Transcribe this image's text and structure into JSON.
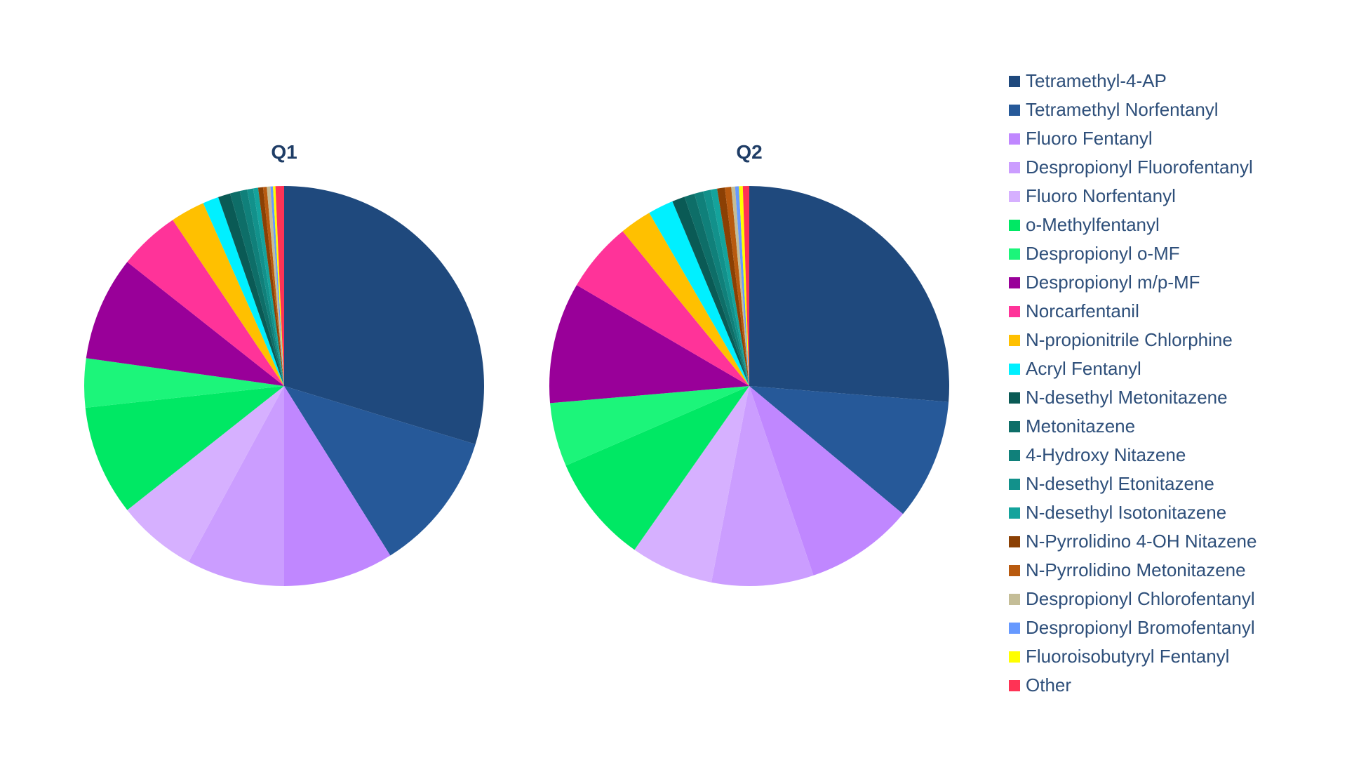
{
  "chart_data": [
    {
      "type": "pie",
      "title": "Q1",
      "categories": [
        "Tetramethyl-4-AP",
        "Tetramethyl Norfentanyl",
        "Fluoro Fentanyl",
        "Despropionyl Fluorofentanyl",
        "Fluoro Norfentanyl",
        "o-Methylfentanyl",
        "Despropionyl o-MF",
        "Despropionyl m/p-MF",
        "Norcarfentanil",
        "N-propionitrile Chlorphine",
        "Acryl Fentanyl",
        "N-desethyl Metonitazene",
        "Metonitazene",
        "4-Hydroxy Nitazene",
        "N-desethyl Etonitazene",
        "N-desethyl Isotonitazene",
        "N-Pyrrolidino 4-OH Nitazene",
        "N-Pyrrolidino Metonitazene",
        "Despropionyl Chlorofentanyl",
        "Despropionyl Bromofentanyl",
        "Fluoroisobutyryl Fentanyl",
        "Other"
      ],
      "values": [
        30.0,
        11.5,
        9.0,
        8.0,
        6.5,
        9.0,
        4.0,
        8.5,
        5.0,
        2.8,
        1.3,
        1.0,
        0.8,
        0.6,
        0.5,
        0.4,
        0.4,
        0.3,
        0.3,
        0.2,
        0.2,
        0.7
      ]
    },
    {
      "type": "pie",
      "title": "Q2",
      "categories": [
        "Tetramethyl-4-AP",
        "Tetramethyl Norfentanyl",
        "Fluoro Fentanyl",
        "Despropionyl Fluorofentanyl",
        "Fluoro Norfentanyl",
        "o-Methylfentanyl",
        "Despropionyl o-MF",
        "Despropionyl m/p-MF",
        "Norcarfentanil",
        "N-propionitrile Chlorphine",
        "Acryl Fentanyl",
        "N-desethyl Metonitazene",
        "Metonitazene",
        "4-Hydroxy Nitazene",
        "N-desethyl Etonitazene",
        "N-desethyl Isotonitazene",
        "N-Pyrrolidino 4-OH Nitazene",
        "N-Pyrrolidino Metonitazene",
        "Despropionyl Chlorofentanyl",
        "Despropionyl Bromofentanyl",
        "Fluoroisobutyryl Fentanyl",
        "Other"
      ],
      "values": [
        25.5,
        9.5,
        8.5,
        8.0,
        6.5,
        8.5,
        5.0,
        9.5,
        5.5,
        2.5,
        2.0,
        1.0,
        0.8,
        0.7,
        0.6,
        0.5,
        0.6,
        0.5,
        0.3,
        0.3,
        0.3,
        0.5
      ]
    }
  ],
  "legend": {
    "placement": "right",
    "items": [
      {
        "label": "Tetramethyl-4-AP",
        "color": "#1F497D"
      },
      {
        "label": "Tetramethyl Norfentanyl",
        "color": "#265999"
      },
      {
        "label": "Fluoro Fentanyl",
        "color": "#C087FF"
      },
      {
        "label": "Despropionyl Fluorofentanyl",
        "color": "#CB9DFF"
      },
      {
        "label": "Fluoro Norfentanyl",
        "color": "#D6B0FF"
      },
      {
        "label": "o-Methylfentanyl",
        "color": "#00E864"
      },
      {
        "label": "Despropionyl o-MF",
        "color": "#1CF57A"
      },
      {
        "label": "Despropionyl m/p-MF",
        "color": "#990099"
      },
      {
        "label": "Norcarfentanil",
        "color": "#FF3399"
      },
      {
        "label": "N-propionitrile Chlorphine",
        "color": "#FFC000"
      },
      {
        "label": "Acryl Fentanyl",
        "color": "#00F0FF"
      },
      {
        "label": "N-desethyl Metonitazene",
        "color": "#0A5A55"
      },
      {
        "label": "Metonitazene",
        "color": "#0E6E68"
      },
      {
        "label": "4-Hydroxy Nitazene",
        "color": "#10807A"
      },
      {
        "label": "N-desethyl Etonitazene",
        "color": "#12918B"
      },
      {
        "label": "N-desethyl Isotonitazene",
        "color": "#14A39C"
      },
      {
        "label": "N-Pyrrolidino 4-OH Nitazene",
        "color": "#8B4004"
      },
      {
        "label": "N-Pyrrolidino Metonitazene",
        "color": "#B85A0F"
      },
      {
        "label": "Despropionyl Chlorofentanyl",
        "color": "#C4BD97"
      },
      {
        "label": "Despropionyl Bromofentanyl",
        "color": "#6699FF"
      },
      {
        "label": "Fluoroisobutyryl Fentanyl",
        "color": "#FFFF00"
      },
      {
        "label": "Other",
        "color": "#FF3355"
      }
    ]
  }
}
